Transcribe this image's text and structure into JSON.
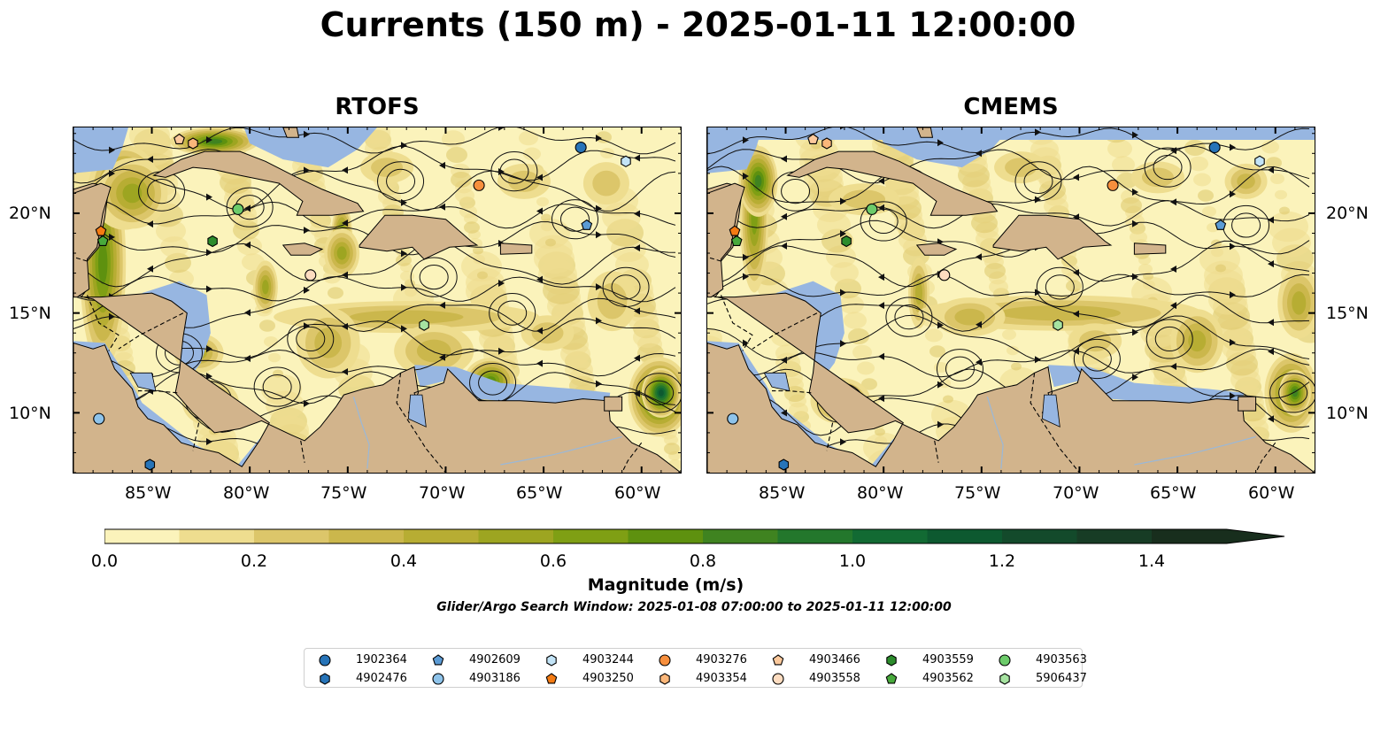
{
  "title": "Currents (150 m) - 2025-01-11 12:00:00",
  "panels": [
    {
      "title": "RTOFS"
    },
    {
      "title": "CMEMS"
    }
  ],
  "axes": {
    "lon_range": [
      -89,
      -58
    ],
    "lat_range": [
      7,
      24.3
    ],
    "lon_ticks": [
      "85°W",
      "80°W",
      "75°W",
      "70°W",
      "65°W",
      "60°W"
    ],
    "lat_ticks": [
      "20°N",
      "15°N",
      "10°N"
    ]
  },
  "colorbar": {
    "label": "Magnitude (m/s)",
    "ticks": [
      "0.0",
      "0.2",
      "0.4",
      "0.6",
      "0.8",
      "1.0",
      "1.2",
      "1.4"
    ],
    "range": [
      0,
      1.5
    ],
    "extend": "max",
    "colors": [
      "#fbf3bb",
      "#eedd8f",
      "#dcc66a",
      "#cbb74c",
      "#b7ad33",
      "#9da521",
      "#7f9f14",
      "#5e910f",
      "#3f8320",
      "#23772c",
      "#126a33",
      "#0d5930",
      "#134a2b",
      "#173c25",
      "#182e1d"
    ]
  },
  "search_window": "Glider/Argo Search Window: 2025-01-08 07:00:00 to 2025-01-11 12:00:00",
  "legend": [
    {
      "id": "1902364",
      "marker": "circle",
      "color": "#2774b8"
    },
    {
      "id": "4902476",
      "marker": "hexagon",
      "color": "#2774b8"
    },
    {
      "id": "4902609",
      "marker": "pentagon",
      "color": "#5b9bd5"
    },
    {
      "id": "4903186",
      "marker": "circle",
      "color": "#8ec3ea"
    },
    {
      "id": "4903244",
      "marker": "hexagon",
      "color": "#c3e4f7"
    },
    {
      "id": "4903250",
      "marker": "pentagon",
      "color": "#f47b13"
    },
    {
      "id": "4903276",
      "marker": "circle",
      "color": "#f78f3d"
    },
    {
      "id": "4903354",
      "marker": "hexagon",
      "color": "#fbb77a"
    },
    {
      "id": "4903466",
      "marker": "pentagon",
      "color": "#fcc99c"
    },
    {
      "id": "4903558",
      "marker": "circle",
      "color": "#fddcc0"
    },
    {
      "id": "4903559",
      "marker": "hexagon",
      "color": "#2c8c2c"
    },
    {
      "id": "4903562",
      "marker": "pentagon",
      "color": "#48aa3c"
    },
    {
      "id": "4903563",
      "marker": "circle",
      "color": "#6ccb6a"
    },
    {
      "id": "5906437",
      "marker": "hexagon",
      "color": "#a6e3a1"
    }
  ],
  "floats": [
    {
      "id": "1902364",
      "lon": -63.1,
      "lat": 23.3
    },
    {
      "id": "4903244",
      "lon": -60.8,
      "lat": 22.6
    },
    {
      "id": "4903276",
      "lon": -68.3,
      "lat": 21.4
    },
    {
      "id": "4902609",
      "lon": -62.8,
      "lat": 19.4
    },
    {
      "id": "4903466",
      "lon": -83.6,
      "lat": 23.7
    },
    {
      "id": "4903354",
      "lon": -82.9,
      "lat": 23.5
    },
    {
      "id": "4903563",
      "lon": -80.6,
      "lat": 20.2
    },
    {
      "id": "4903559",
      "lon": -81.9,
      "lat": 18.6
    },
    {
      "id": "4903250",
      "lon": -87.6,
      "lat": 19.1
    },
    {
      "id": "4903562",
      "lon": -87.5,
      "lat": 18.6
    },
    {
      "id": "4903558",
      "lon": -76.9,
      "lat": 16.9
    },
    {
      "id": "5906437",
      "lon": -71.1,
      "lat": 14.4
    },
    {
      "id": "4903186",
      "lon": -87.7,
      "lat": 9.7
    },
    {
      "id": "4902476",
      "lon": -85.1,
      "lat": 7.4
    }
  ],
  "map_colors": {
    "land": "#d2b48c",
    "water": "#97b6e1"
  }
}
